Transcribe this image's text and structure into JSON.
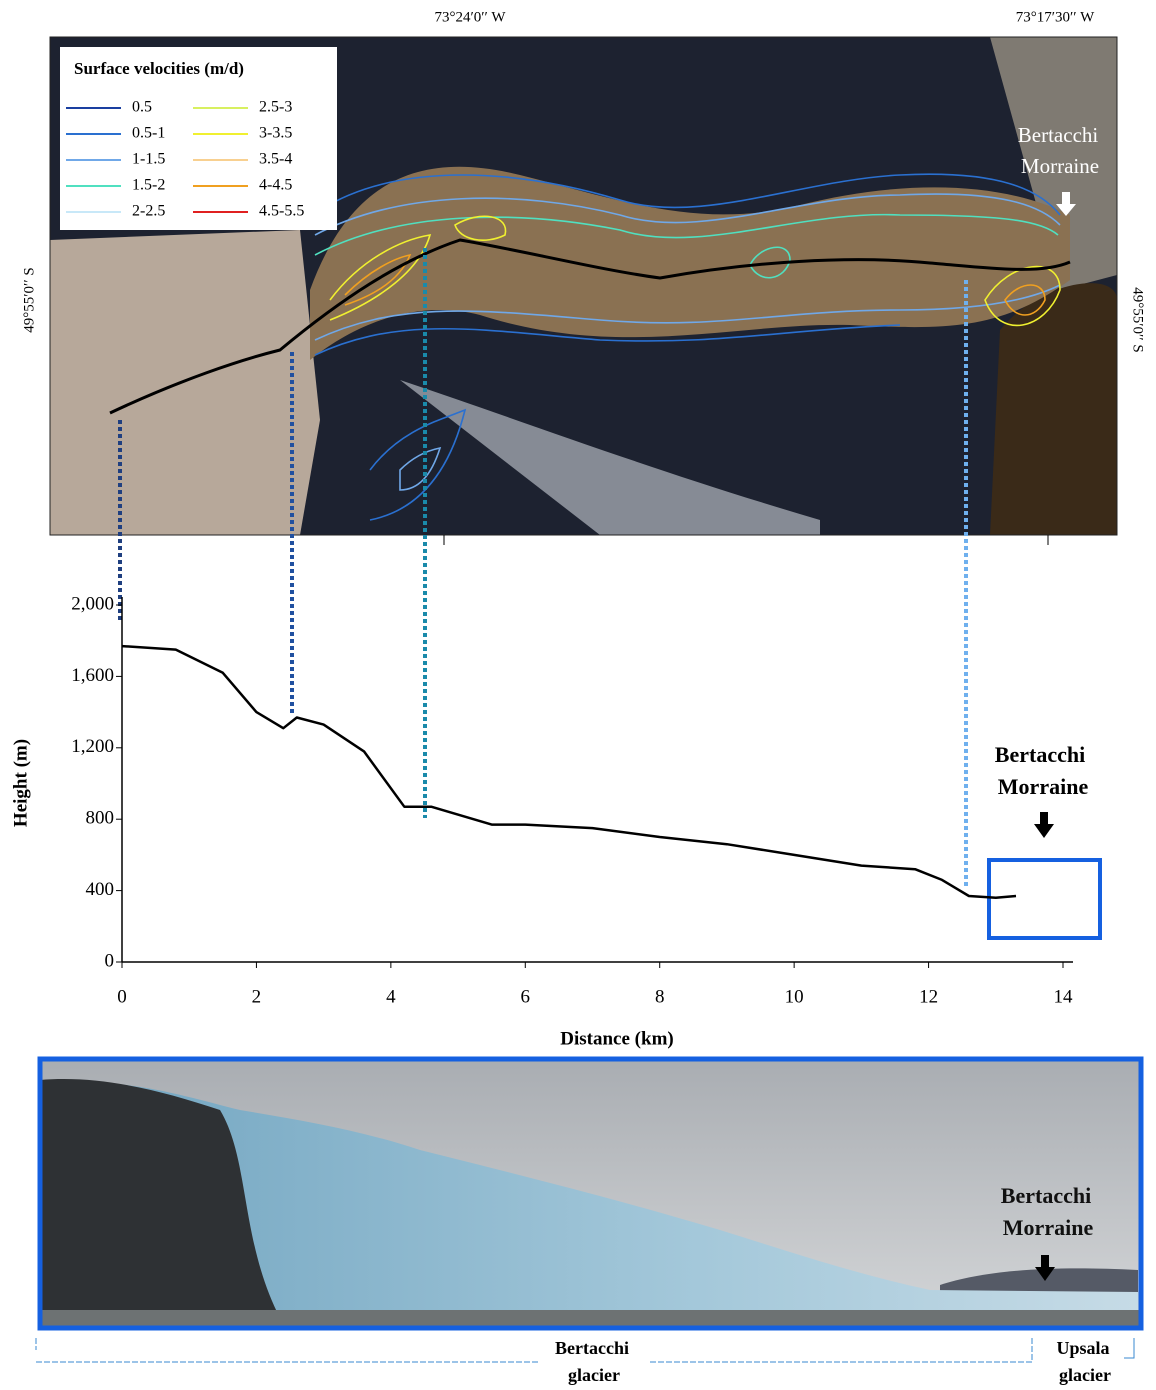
{
  "map": {
    "lon_labels": [
      "73°24′0′′ W",
      "73°17′30′′ W"
    ],
    "lat_labels": [
      "49°55′0′′ S",
      "49°55′0′′ S"
    ],
    "legend": {
      "title": "Surface velocities (m/d)",
      "entries": [
        {
          "label": "0.5",
          "color": "#1a3fa0"
        },
        {
          "label": "0.5-1",
          "color": "#2a70d0"
        },
        {
          "label": "1-1.5",
          "color": "#70a8e8"
        },
        {
          "label": "1.5-2",
          "color": "#50e0c0"
        },
        {
          "label": "2-2.5",
          "color": "#c8e8f8"
        },
        {
          "label": "2.5-3",
          "color": "#d8f060"
        },
        {
          "label": "3-3.5",
          "color": "#f0f030"
        },
        {
          "label": "3.5-4",
          "color": "#f8d090"
        },
        {
          "label": "4-4.5",
          "color": "#f0a020"
        },
        {
          "label": "4.5-5.5",
          "color": "#e02020"
        }
      ]
    },
    "annotation": [
      "Bertacchi",
      "Morraine"
    ]
  },
  "chart_data": {
    "type": "line",
    "x": [
      0,
      0.8,
      1.5,
      2,
      2.4,
      2.6,
      3,
      3.6,
      4.2,
      4.6,
      5.5,
      6,
      7,
      8,
      9,
      10,
      11,
      11.8,
      12.2,
      12.6,
      13,
      13.3
    ],
    "values": [
      1770,
      1750,
      1620,
      1400,
      1310,
      1370,
      1330,
      1180,
      870,
      870,
      770,
      770,
      750,
      700,
      660,
      600,
      540,
      520,
      460,
      370,
      360,
      370
    ],
    "color": "#000000",
    "xlim": [
      0,
      14
    ],
    "xticks": [
      0,
      2,
      4,
      6,
      8,
      10,
      12,
      14
    ],
    "ylim": [
      0,
      2000
    ],
    "yticks": [
      0,
      400,
      800,
      {
        "value": 1200,
        "label": "1,200"
      },
      {
        "value": 1600,
        "label": "1,600"
      },
      {
        "value": 2000,
        "label": "2,000"
      }
    ],
    "x_label": "Distance (km)",
    "y_label": "Height (m)",
    "annotation": [
      "Bertacchi",
      "Morraine"
    ]
  },
  "photo": {
    "annotation": [
      "Bertacchi",
      "Morraine"
    ],
    "captions": [
      [
        "Bertacchi",
        "glacier"
      ],
      [
        "Upsala",
        "glacier"
      ]
    ]
  }
}
